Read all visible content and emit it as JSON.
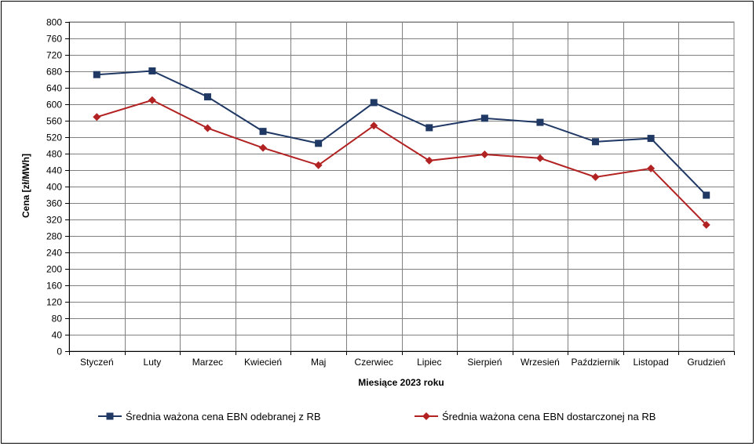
{
  "chart_data": {
    "type": "line",
    "xlabel": "Miesiące 2023  roku",
    "ylabel": "Cena [zł/MWh]",
    "ylim": [
      0,
      800
    ],
    "yticks": [
      0,
      40,
      80,
      120,
      160,
      200,
      240,
      280,
      320,
      360,
      400,
      440,
      480,
      520,
      560,
      600,
      640,
      680,
      720,
      760,
      800
    ],
    "grid": true,
    "legend_position": "bottom",
    "categories": [
      "Styczeń",
      "Luty",
      "Marzec",
      "Kwiecień",
      "Maj",
      "Czerwiec",
      "Lipiec",
      "Sierpień",
      "Wrzesień",
      "Październik",
      "Listopad",
      "Grudzień"
    ],
    "series": [
      {
        "name": "Średnia ważona cena EBN odebranej z RB",
        "color": "#1f3864",
        "marker": "square",
        "values": [
          672,
          681,
          618,
          534,
          505,
          604,
          543,
          566,
          556,
          509,
          517,
          379
        ]
      },
      {
        "name": "Średnia ważona cena EBN dostarczonej na RB",
        "color": "#b22222",
        "marker": "diamond",
        "values": [
          569,
          610,
          542,
          494,
          452,
          548,
          463,
          478,
          469,
          423,
          444,
          307
        ]
      }
    ]
  }
}
